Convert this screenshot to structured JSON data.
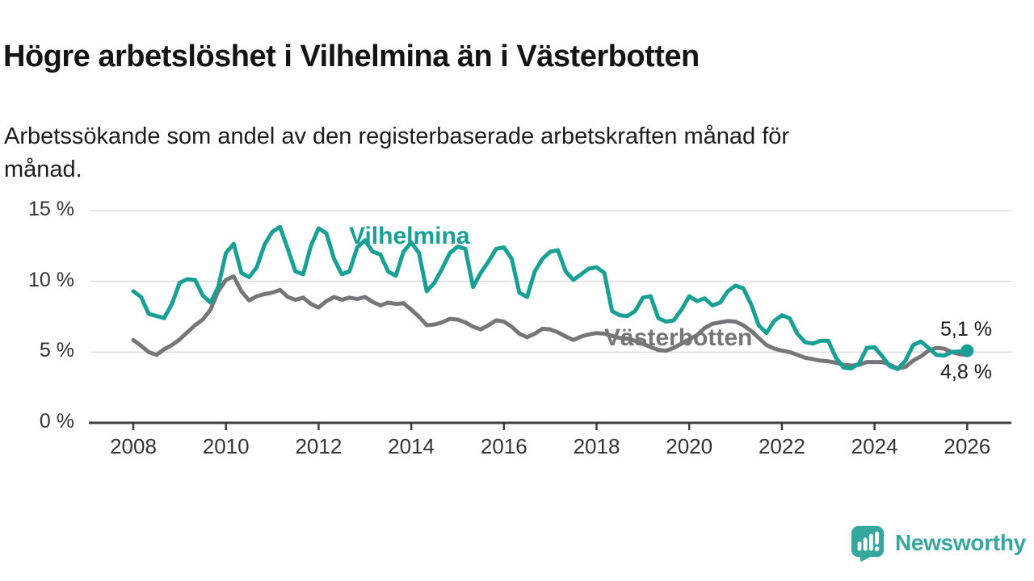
{
  "header": {
    "title": "Högre arbetslöshet i Vilhelmina än i Västerbotten",
    "subtitle_line1": "Arbetssökande som andel av den registerbaserade arbetskraften månad för",
    "subtitle_line2": "månad."
  },
  "colors": {
    "vilhelmina": "#18A094",
    "vasterbotten": "#767679",
    "grid": "#dbdbdb",
    "axis": "#3f3f3f",
    "tick_text": "#333333",
    "value_text": "#1a1a1a",
    "brand": "#35A79E"
  },
  "chart_data": {
    "type": "line",
    "title": "Högre arbetslöshet i Vilhelmina än i Västerbotten",
    "subtitle": "Arbetssökande som andel av den registerbaserade arbetskraften månad för månad.",
    "unit": "%",
    "x_start": 2008,
    "x_step_years": 0.16667,
    "x_tick_labels": [
      "2008",
      "2010",
      "2012",
      "2014",
      "2016",
      "2018",
      "2020",
      "2022",
      "2024",
      "2026"
    ],
    "y_ticks": [
      {
        "value": 0,
        "label": "0 %"
      },
      {
        "value": 5,
        "label": "5 %"
      },
      {
        "value": 10,
        "label": "10 %"
      },
      {
        "value": 15,
        "label": "15 %"
      }
    ],
    "ylim": [
      0,
      15.8
    ],
    "grid": true,
    "legend_position": "inline-labels",
    "series": [
      {
        "name": "Vilhelmina",
        "color": "#18A094",
        "end_label": "5,1 %",
        "values": [
          9.3,
          8.9,
          7.7,
          7.55,
          7.4,
          8.4,
          9.9,
          10.15,
          10.1,
          9.0,
          8.5,
          9.6,
          12.0,
          12.65,
          10.6,
          10.3,
          11.0,
          12.6,
          13.5,
          13.85,
          12.3,
          10.7,
          10.5,
          12.5,
          13.75,
          13.4,
          11.6,
          10.5,
          10.7,
          12.4,
          12.9,
          12.1,
          11.9,
          10.7,
          10.4,
          12.1,
          12.75,
          12.0,
          9.3,
          9.9,
          10.9,
          12.0,
          12.45,
          12.3,
          9.6,
          10.6,
          11.4,
          12.3,
          12.4,
          11.6,
          9.2,
          8.9,
          10.7,
          11.6,
          12.1,
          12.2,
          10.7,
          10.1,
          10.5,
          10.9,
          11.0,
          10.6,
          7.9,
          7.6,
          7.55,
          7.9,
          8.85,
          8.95,
          7.4,
          7.15,
          7.25,
          8.0,
          8.95,
          8.6,
          8.8,
          8.3,
          8.5,
          9.3,
          9.7,
          9.5,
          8.4,
          6.9,
          6.35,
          7.2,
          7.6,
          7.4,
          6.3,
          5.7,
          5.6,
          5.8,
          5.8,
          4.6,
          3.9,
          3.85,
          4.2,
          5.3,
          5.35,
          4.7,
          4.0,
          3.8,
          4.4,
          5.5,
          5.75,
          5.3,
          4.8,
          4.75,
          5.0,
          5.05,
          5.1
        ]
      },
      {
        "name": "Västerbotten",
        "color": "#767679",
        "end_label": "4,8 %",
        "values": [
          5.85,
          5.45,
          5.0,
          4.8,
          5.2,
          5.5,
          5.9,
          6.4,
          6.9,
          7.3,
          8.0,
          9.3,
          10.1,
          10.35,
          9.3,
          8.65,
          8.95,
          9.1,
          9.2,
          9.4,
          8.9,
          8.7,
          8.85,
          8.4,
          8.15,
          8.6,
          8.9,
          8.7,
          8.85,
          8.75,
          8.9,
          8.55,
          8.3,
          8.5,
          8.4,
          8.45,
          8.0,
          7.5,
          6.9,
          6.95,
          7.1,
          7.35,
          7.3,
          7.1,
          6.8,
          6.6,
          6.9,
          7.25,
          7.15,
          6.8,
          6.3,
          6.05,
          6.3,
          6.65,
          6.6,
          6.4,
          6.1,
          5.85,
          6.1,
          6.25,
          6.35,
          6.3,
          6.15,
          6.0,
          5.95,
          5.8,
          5.6,
          5.35,
          5.15,
          5.1,
          5.3,
          5.6,
          5.9,
          6.2,
          6.7,
          7.0,
          7.1,
          7.2,
          7.15,
          6.9,
          6.5,
          6.0,
          5.5,
          5.25,
          5.1,
          5.0,
          4.8,
          4.6,
          4.5,
          4.4,
          4.35,
          4.25,
          4.1,
          4.05,
          4.1,
          4.3,
          4.3,
          4.3,
          4.1,
          3.85,
          3.95,
          4.4,
          4.7,
          5.1,
          5.3,
          5.25,
          5.0,
          4.85,
          4.8
        ]
      }
    ]
  },
  "annotations": {
    "vilhelmina_label": "Vilhelmina",
    "vasterbotten_label": "Västerbotten",
    "end_value_top": "5,1 %",
    "end_value_bottom": "4,8 %"
  },
  "branding": {
    "wordmark": "Newsworthy"
  }
}
